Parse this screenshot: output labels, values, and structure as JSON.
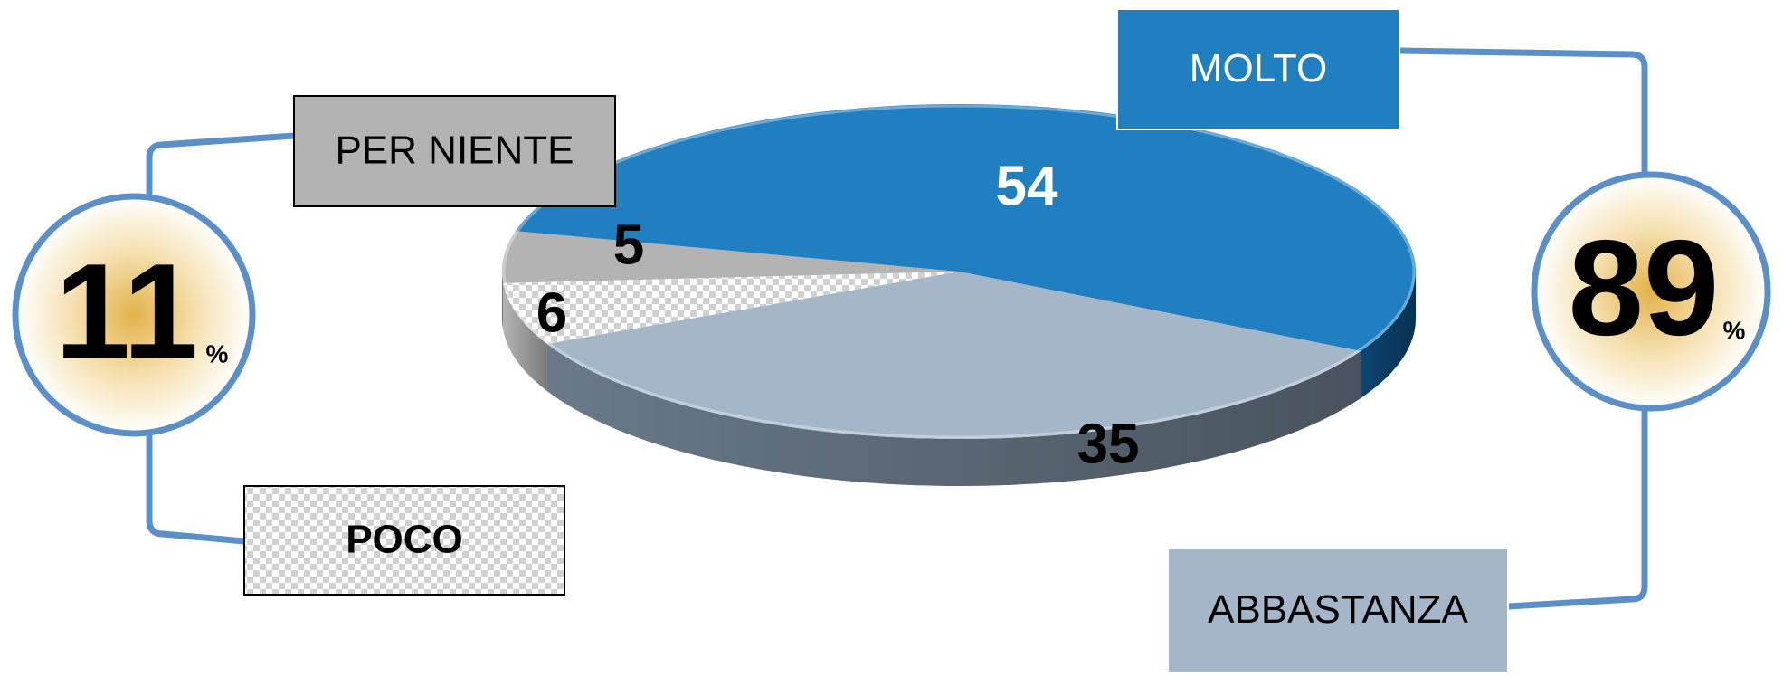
{
  "chart_data": {
    "type": "pie",
    "unit": "%",
    "slices": [
      {
        "label": "MOLTO",
        "value": 54,
        "color": "#1f7fc1",
        "side_color": "#0d4a78",
        "value_color": "#ffffff"
      },
      {
        "label": "ABBASTANZA",
        "value": 35,
        "color": "#a5b6c8",
        "side_color": "#6f8090",
        "value_color": "#000000"
      },
      {
        "label": "POCO",
        "value": 6,
        "color": "#e6e6e6",
        "side_color": "#bdbdbd",
        "value_color": "#000000",
        "pattern": "checker"
      },
      {
        "label": "PER NIENTE",
        "value": 5,
        "color": "#b3b3b3",
        "side_color": "#8a8a8a",
        "value_color": "#000000"
      }
    ],
    "group_totals": [
      {
        "value": "11",
        "unit": "%",
        "groups": [
          "PER NIENTE",
          "POCO"
        ]
      },
      {
        "value": "89",
        "unit": "%",
        "groups": [
          "MOLTO",
          "ABBASTANZA"
        ]
      }
    ],
    "connector_color": "#5b8fc9",
    "circle_glow_color": "#e3b24a"
  }
}
